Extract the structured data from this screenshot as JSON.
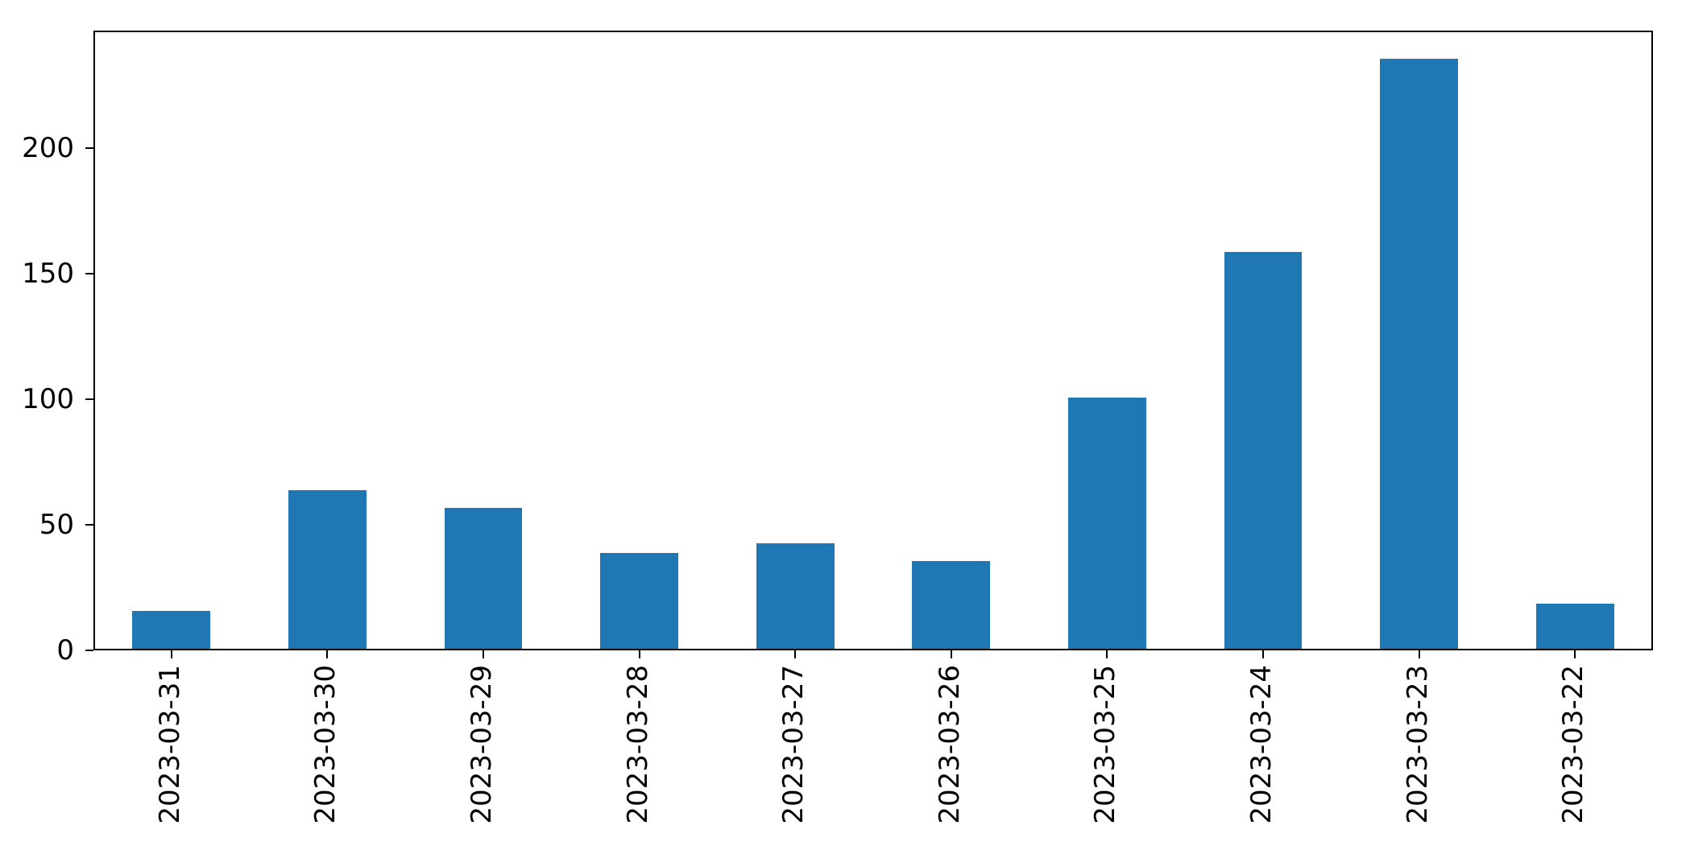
{
  "chart_data": {
    "type": "bar",
    "title": "",
    "xlabel": "",
    "ylabel": "",
    "categories": [
      "2023-03-31",
      "2023-03-30",
      "2023-03-29",
      "2023-03-28",
      "2023-03-27",
      "2023-03-26",
      "2023-03-25",
      "2023-03-24",
      "2023-03-23",
      "2023-03-22"
    ],
    "values": [
      15,
      63,
      56,
      38,
      42,
      35,
      100,
      158,
      235,
      18
    ],
    "ylim": [
      0,
      246.75
    ],
    "yticks": [
      0,
      50,
      100,
      150,
      200
    ],
    "bar_color": "#1f77b4",
    "bar_width_fraction": 0.5,
    "grid": false,
    "legend_position": "none",
    "x_tick_rotation_degrees": 90
  }
}
